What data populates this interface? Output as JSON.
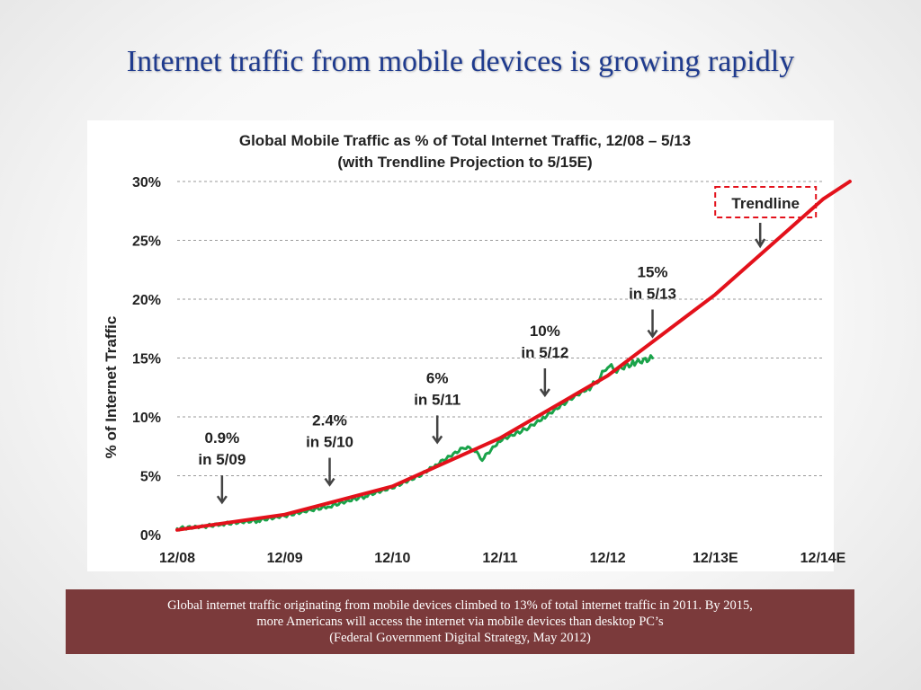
{
  "slide": {
    "title": "Internet traffic from mobile devices is growing rapidly"
  },
  "caption": {
    "line1": "Global internet traffic originating from mobile devices climbed to 13% of total internet traffic in 2011. By 2015,",
    "line2": "more Americans will access the internet via mobile devices than desktop PC’s",
    "line3": "(Federal Government Digital Strategy, May 2012)"
  },
  "chart_data": {
    "type": "line",
    "title": "Global Mobile Traffic as % of Total Internet Traffic, 12/08 – 5/13",
    "subtitle": "(with Trendline Projection to 5/15E)",
    "ylabel": "% of Internet Traffic",
    "xlabel": "",
    "x_ticks": [
      "12/08",
      "12/09",
      "12/10",
      "12/11",
      "12/12",
      "12/13E",
      "12/14E"
    ],
    "y_ticks": [
      "0%",
      "5%",
      "10%",
      "15%",
      "20%",
      "25%",
      "30%"
    ],
    "ylim": [
      0,
      30
    ],
    "xlim": [
      "12/08",
      "12/14"
    ],
    "grid": "horizontal dashed",
    "series": [
      {
        "name": "",
        "color": "#1aa34a",
        "points": [
          [
            "12/08",
            0.5
          ],
          [
            "3/09",
            0.7
          ],
          [
            "5/09",
            0.9
          ],
          [
            "9/09",
            1.2
          ],
          [
            "12/09",
            1.6
          ],
          [
            "3/10",
            2.1
          ],
          [
            "5/10",
            2.4
          ],
          [
            "9/10",
            3.3
          ],
          [
            "12/10",
            4.0
          ],
          [
            "3/11",
            5.0
          ],
          [
            "5/11",
            6.0
          ],
          [
            "8/11",
            7.4
          ],
          [
            "9/11",
            7.3
          ],
          [
            "10/11",
            6.4
          ],
          [
            "12/11",
            8.0
          ],
          [
            "3/12",
            9.0
          ],
          [
            "5/12",
            10.0
          ],
          [
            "8/12",
            11.6
          ],
          [
            "10/12",
            12.5
          ],
          [
            "11/12",
            13.2
          ],
          [
            "12/12",
            14.4
          ],
          [
            "1/13",
            14.0
          ],
          [
            "3/13",
            14.6
          ],
          [
            "5/13",
            15.0
          ]
        ]
      },
      {
        "name": "Trendline",
        "color": "#e3111b",
        "points": [
          [
            "12/08",
            0.4
          ],
          [
            "12/09",
            1.7
          ],
          [
            "12/10",
            4.1
          ],
          [
            "12/11",
            8.2
          ],
          [
            "12/12",
            13.5
          ],
          [
            "12/13",
            20.4
          ],
          [
            "12/14",
            28.5
          ],
          [
            "3/15",
            30.0
          ]
        ]
      }
    ],
    "annotations": [
      {
        "text": [
          "0.9%",
          "in 5/09"
        ],
        "x": "5/09",
        "y": 0.9
      },
      {
        "text": [
          "2.4%",
          "in 5/10"
        ],
        "x": "5/10",
        "y": 2.4
      },
      {
        "text": [
          "6%",
          "in 5/11"
        ],
        "x": "5/11",
        "y": 6.0
      },
      {
        "text": [
          "10%",
          "in 5/12"
        ],
        "x": "5/12",
        "y": 10.0
      },
      {
        "text": [
          "15%",
          "in 5/13"
        ],
        "x": "5/13",
        "y": 15.0
      },
      {
        "text": [
          "Trendline"
        ],
        "x": "5/14",
        "y": 24.5,
        "boxed": true
      }
    ]
  }
}
